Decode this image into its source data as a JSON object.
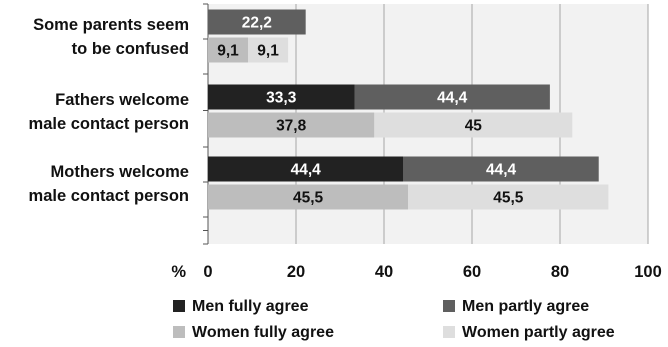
{
  "chart_data": {
    "type": "bar",
    "orientation": "horizontal",
    "stacked": true,
    "unit_label": "%",
    "xlim": [
      0,
      100
    ],
    "x_ticks": [
      "0",
      "20",
      "40",
      "60",
      "80",
      "100"
    ],
    "grid": true,
    "legend_position": "bottom",
    "categories": [
      {
        "lines": [
          "Some parents seem",
          "to be confused"
        ]
      },
      {
        "lines": [
          "Fathers welcome",
          "male contact person"
        ]
      },
      {
        "lines": [
          "Mothers welcome",
          "male contact person"
        ]
      }
    ],
    "series": [
      {
        "name": "Men fully agree",
        "color": "#222222",
        "group": "men",
        "values": [
          0,
          33.3,
          44.4
        ],
        "labels": [
          "",
          "33,3",
          "44,4"
        ]
      },
      {
        "name": "Men partly agree",
        "color": "#5f5f5f",
        "group": "men",
        "values": [
          22.2,
          44.4,
          44.4
        ],
        "labels": [
          "22,2",
          "44,4",
          "44,4"
        ]
      },
      {
        "name": "Women fully agree",
        "color": "#bdbdbd",
        "group": "women",
        "values": [
          9.1,
          37.8,
          45.5
        ],
        "labels": [
          "9,1",
          "37,8",
          "45,5"
        ]
      },
      {
        "name": "Women partly agree",
        "color": "#dedede",
        "group": "women",
        "values": [
          9.1,
          45,
          45.5
        ],
        "labels": [
          "9,1",
          "45",
          "45,5"
        ]
      }
    ],
    "colors": {
      "plot_background": "#f2f2f2",
      "grid": "#a6a6a6",
      "axis": "#555555",
      "label_on_dark": "#ffffff",
      "label_on_light": "#111111"
    }
  }
}
